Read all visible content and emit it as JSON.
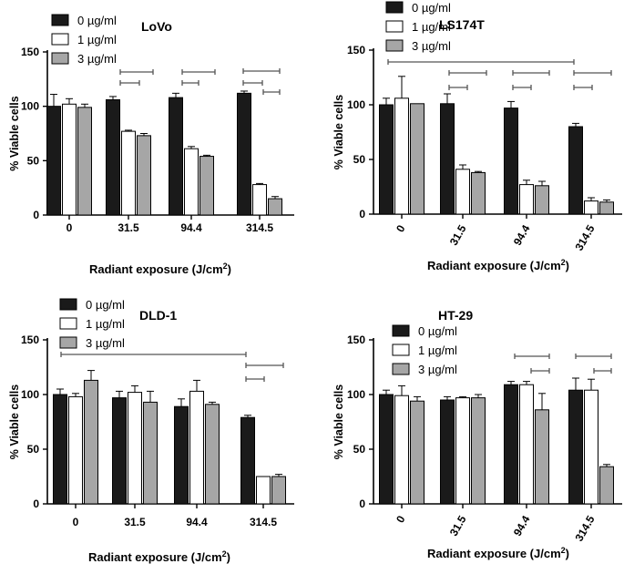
{
  "chart_data": [
    {
      "type": "bar",
      "title": "LoVo",
      "xlabel": "Radiant exposure (J/cm",
      "xlabel_sup": "2",
      "xlabel_close": ")",
      "ylabel": "% Viable cells",
      "ylim": [
        0,
        150
      ],
      "yticks": [
        "0",
        "50",
        "100",
        "150"
      ],
      "categories": [
        "0",
        "31.5",
        "94.4",
        "314.5"
      ],
      "rotated_ticks": false,
      "series": [
        {
          "name": "0 µg/ml",
          "color": "#1a1a1a",
          "values": [
            100,
            106,
            108,
            112
          ],
          "errors": [
            11,
            3,
            4,
            2
          ]
        },
        {
          "name": "1 µg/ml",
          "color": "#ffffff",
          "values": [
            102,
            77,
            61,
            28
          ],
          "errors": [
            5,
            1,
            2,
            1
          ]
        },
        {
          "name": "3 µg/ml",
          "color": "#a6a6a6",
          "values": [
            99,
            73,
            54,
            15
          ],
          "errors": [
            3,
            2,
            1,
            2
          ]
        }
      ]
    },
    {
      "type": "bar",
      "title": "LS174T",
      "xlabel": "Radiant exposure (J/cm",
      "xlabel_sup": "2",
      "xlabel_close": ")",
      "ylabel": "% Viable cells",
      "ylim": [
        0,
        150
      ],
      "yticks": [
        "0",
        "50",
        "100",
        "150"
      ],
      "categories": [
        "0",
        "31.5",
        "94.4",
        "314.5"
      ],
      "rotated_ticks": true,
      "series": [
        {
          "name": "0 µg/ml",
          "color": "#1a1a1a",
          "values": [
            100,
            101,
            97,
            80
          ],
          "errors": [
            6,
            9,
            6,
            3
          ]
        },
        {
          "name": "1 µg/ml",
          "color": "#ffffff",
          "values": [
            106,
            41,
            27,
            12
          ],
          "errors": [
            20,
            4,
            4,
            3
          ]
        },
        {
          "name": "3 µg/ml",
          "color": "#a6a6a6",
          "values": [
            101,
            38,
            26,
            11
          ],
          "errors": [
            0,
            1,
            4,
            2
          ]
        }
      ]
    },
    {
      "type": "bar",
      "title": "DLD-1",
      "xlabel": "Radiant exposure (J/cm",
      "xlabel_sup": "2",
      "xlabel_close": ")",
      "ylabel": "% Viable cells",
      "ylim": [
        0,
        150
      ],
      "yticks": [
        "0",
        "50",
        "100",
        "150"
      ],
      "categories": [
        "0",
        "31.5",
        "94.4",
        "314.5"
      ],
      "rotated_ticks": false,
      "series": [
        {
          "name": "0 µg/ml",
          "color": "#1a1a1a",
          "values": [
            100,
            97,
            89,
            79
          ],
          "errors": [
            5,
            6,
            7,
            2
          ]
        },
        {
          "name": "1 µg/ml",
          "color": "#ffffff",
          "values": [
            98,
            102,
            103,
            25
          ],
          "errors": [
            3,
            6,
            10,
            0
          ]
        },
        {
          "name": "3 µg/ml",
          "color": "#a6a6a6",
          "values": [
            113,
            93,
            91,
            25
          ],
          "errors": [
            9,
            10,
            2,
            2
          ]
        }
      ]
    },
    {
      "type": "bar",
      "title": "HT-29",
      "xlabel": "Radiant exposure (J/cm",
      "xlabel_sup": "2",
      "xlabel_close": ")",
      "ylabel": "% Viable cells",
      "ylim": [
        0,
        150
      ],
      "yticks": [
        "0",
        "50",
        "100",
        "150"
      ],
      "categories": [
        "0",
        "31.5",
        "94.4",
        "314.5"
      ],
      "rotated_ticks": true,
      "series": [
        {
          "name": "0 µg/ml",
          "color": "#1a1a1a",
          "values": [
            100,
            95,
            109,
            104
          ],
          "errors": [
            4,
            3,
            3,
            11
          ]
        },
        {
          "name": "1 µg/ml",
          "color": "#ffffff",
          "values": [
            99,
            97,
            109,
            104
          ],
          "errors": [
            9,
            1,
            3,
            10
          ]
        },
        {
          "name": "3 µg/ml",
          "color": "#a6a6a6",
          "values": [
            94,
            97,
            86,
            34
          ],
          "errors": [
            4,
            3,
            15,
            2
          ]
        }
      ]
    }
  ]
}
